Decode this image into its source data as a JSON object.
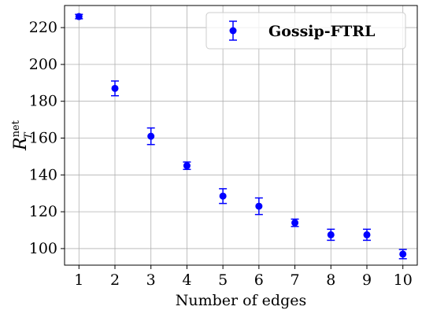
{
  "chart_data": {
    "type": "scatter",
    "xlabel": "Number of edges",
    "ylabel_main": "R",
    "ylabel_sup": "net",
    "ylabel_sub": "T",
    "x": [
      1,
      2,
      3,
      4,
      5,
      6,
      7,
      8,
      9,
      10
    ],
    "xticks": [
      "1",
      "2",
      "3",
      "4",
      "5",
      "6",
      "7",
      "8",
      "9",
      "10"
    ],
    "yticks": [
      "100",
      "120",
      "140",
      "160",
      "180",
      "200",
      "220"
    ],
    "xlim": [
      0.6,
      10.4
    ],
    "ylim": [
      91,
      232
    ],
    "grid": true,
    "legend_position": "top-right",
    "series": [
      {
        "name": "Gossip-FTRL",
        "color": "#0000ff",
        "marker": "circle",
        "values": [
          226,
          187,
          161,
          145,
          128.5,
          123,
          114,
          107.5,
          107.5,
          97
        ],
        "error": [
          1.2,
          4.0,
          4.5,
          2.0,
          4.0,
          4.5,
          2.0,
          3.0,
          3.0,
          2.5
        ]
      }
    ]
  }
}
